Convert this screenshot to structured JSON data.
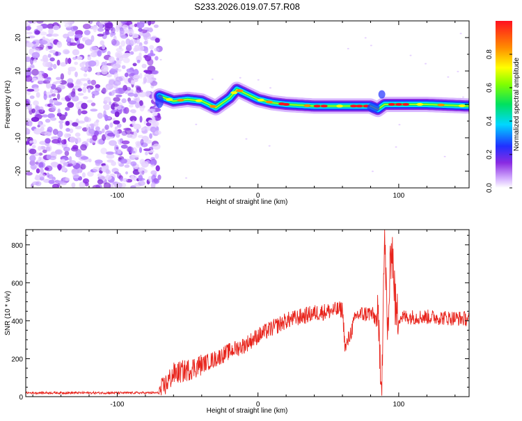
{
  "title": "S233.2026.019.07.57.R08",
  "colors": {
    "snr_line": "#e8241c",
    "trace_low": "#b07cff",
    "trace_mid": "#00c8e0",
    "trace_high": "#d81818"
  },
  "chart_data": [
    {
      "type": "heatmap",
      "title": "",
      "xlabel": "Height of straight line (km)",
      "ylabel": "Frequency (Hz)",
      "xlim": [
        -165,
        150
      ],
      "ylim": [
        -25,
        25
      ],
      "xticks": [
        -100,
        0,
        100
      ],
      "yticks": [
        -20,
        -10,
        0,
        10,
        20
      ],
      "colorbar": {
        "label": "Normalized spectral amplitude",
        "range": [
          0,
          1
        ],
        "ticks": [
          0.0,
          0.2,
          0.4,
          0.6,
          0.8
        ],
        "tick_labels": [
          "0.0",
          "0.2",
          "0.4",
          "0.6",
          "0.8"
        ],
        "colormap": "rainbow (purple → blue → cyan → green → yellow → orange → red)"
      },
      "noise_region_x": [
        -165,
        -70
      ],
      "ridge": {
        "x": [
          -70,
          -60,
          -50,
          -40,
          -30,
          -20,
          -15,
          -10,
          0,
          10,
          20,
          40,
          55,
          60,
          80,
          85,
          90,
          100,
          120,
          150
        ],
        "y": [
          2.5,
          1.0,
          1.5,
          1.0,
          -1.0,
          2.0,
          4.5,
          3.5,
          1.5,
          0.5,
          0.0,
          -0.5,
          -0.5,
          -0.5,
          -0.5,
          -1.5,
          0.0,
          0.0,
          0.0,
          -0.5
        ]
      }
    },
    {
      "type": "line",
      "title": "",
      "xlabel": "Height of straight line (km)",
      "ylabel": "SNR (10 * v/v)",
      "xlim": [
        -165,
        150
      ],
      "ylim": [
        0,
        880
      ],
      "xticks": [
        -100,
        0,
        100
      ],
      "yticks": [
        0,
        200,
        400,
        600,
        800
      ],
      "series": [
        {
          "x": [
            -165,
            -70,
            -60,
            -50,
            -40,
            -30,
            -20,
            -10,
            0,
            10,
            20,
            30,
            40,
            50,
            60,
            62,
            70,
            80,
            85,
            88,
            90,
            92,
            95,
            98,
            100,
            120,
            150
          ],
          "y": [
            20,
            20,
            120,
            140,
            170,
            200,
            240,
            270,
            320,
            360,
            400,
            420,
            440,
            450,
            460,
            250,
            430,
            440,
            400,
            100,
            880,
            300,
            840,
            430,
            420,
            420,
            410
          ]
        }
      ]
    }
  ]
}
